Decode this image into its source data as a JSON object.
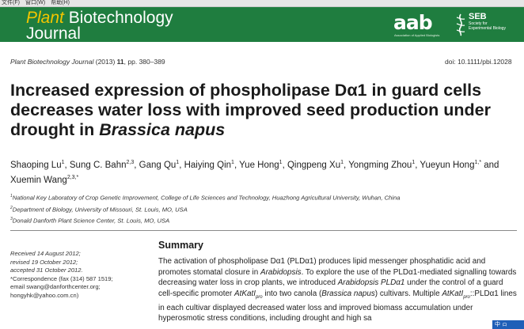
{
  "menubar": {
    "items": [
      "文件(F)",
      "窗口(W)",
      "帮助(H)"
    ]
  },
  "header": {
    "journal_word1": "Plant",
    "journal_word2": " Biotechnology",
    "journal_word3": "Journal",
    "aab_logo": "aab",
    "aab_sub": "Association of Applied Biologists",
    "seb_abbr": "SEB",
    "seb_line1": "Society for",
    "seb_line2": "Experimental Biology"
  },
  "citation": {
    "journal": "Plant Biotechnology Journal",
    "year": " (2013) ",
    "volume": "11",
    "pages": ", pp. 380–389",
    "doi": "doi: 10.1111/pbi.12028"
  },
  "article": {
    "title_part1": "Increased expression of phospholipase Dα1 in guard cells decreases water loss with improved seed production under drought in ",
    "title_species": "Brassica napus"
  },
  "authors": [
    {
      "name": "Shaoping Lu",
      "sup": "1"
    },
    {
      "name": "Sung C. Bahn",
      "sup": "2,3"
    },
    {
      "name": "Gang Qu",
      "sup": "1"
    },
    {
      "name": "Haiying Qin",
      "sup": "1"
    },
    {
      "name": "Yue Hong",
      "sup": "1"
    },
    {
      "name": "Qingpeng Xu",
      "sup": "1"
    },
    {
      "name": "Yongming Zhou",
      "sup": "1"
    },
    {
      "name": "Yueyun Hong",
      "sup": "1,*"
    },
    {
      "name": "Xuemin Wang",
      "sup": "2,3,*"
    }
  ],
  "affiliations": [
    {
      "sup": "1",
      "text": "National Key Laboratory of Crop Genetic Improvement, College of Life Sciences and Technology, Huazhong Agricultural University, Wuhan, China"
    },
    {
      "sup": "2",
      "text": "Department of Biology, University of Missouri, St. Louis, MO, USA"
    },
    {
      "sup": "3",
      "text": "Donald Danforth Plant Science Center, St. Louis, MO, USA"
    }
  ],
  "dates": {
    "received": "Received 14 August 2012;",
    "revised": "revised 19 October 2012;",
    "accepted": "accepted 31 October 2012.",
    "correspondence": "*Correspondence (fax (314) 587 1519;",
    "email1": "email swang@danforthcenter.org;",
    "email2": "hongyhk@yahoo.com.cn)"
  },
  "summary": {
    "heading": "Summary",
    "s1": "The activation of phospholipase Dα1 (PLDα1) produces lipid messenger phosphatidic acid and promotes stomatal closure in ",
    "s1_em": "Arabidopsis",
    "s2": ". To explore the use of the PLDα1-mediated signalling towards decreasing water loss in crop plants, we introduced ",
    "s2_em": "Arabidopsis PLDα1",
    "s3": " under the control of a guard cell-specific promoter ",
    "s3_em": "AtKatI",
    "s3_sub": "pro",
    "s4": " into two canola (",
    "s4_em": "Brassica napus",
    "s5": ") cultivars. Multiple ",
    "s5_em": "AtKatI",
    "s5_sub": "pro",
    "s6": "::PLDα1 lines in each cultivar displayed decreased water loss and improved biomass accumulation under hyperosmotic stress conditions, including drought and high sa"
  },
  "ime": "中 ㇿ"
}
